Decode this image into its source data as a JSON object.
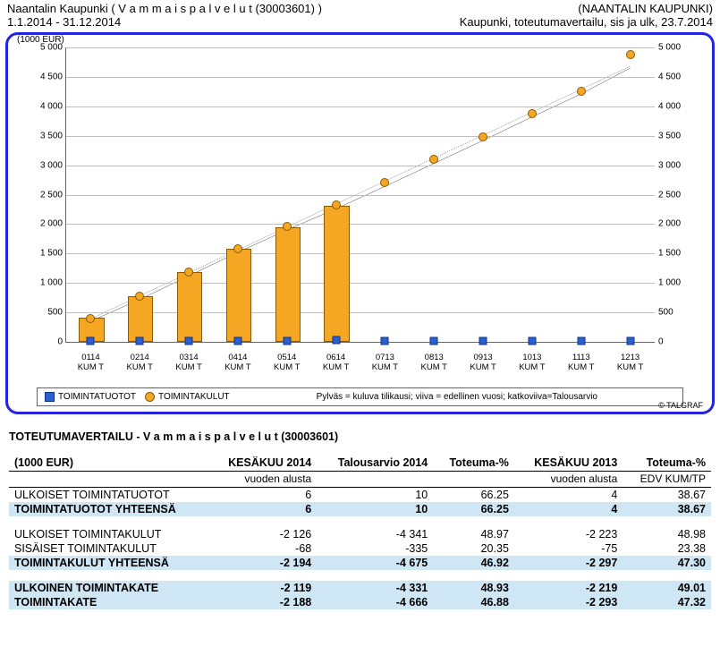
{
  "header": {
    "left1": "Naantalin Kaupunki ( V a m m a i s p a l v e l u t (30003601) )",
    "right1": "(NAANTALIN KAUPUNKI)",
    "left2": "1.1.2014 - 31.12.2014",
    "right2": "Kaupunki, toteutumavertailu, sis ja ulk, 23.7.2014"
  },
  "chart": {
    "axis_title": "(1000 EUR)",
    "ylim": [
      0,
      5000
    ],
    "ytick_step": 500,
    "categories": [
      "0114",
      "0214",
      "0314",
      "0414",
      "0514",
      "0614",
      "0713",
      "0813",
      "0913",
      "1013",
      "1113",
      "1213"
    ],
    "cat_sub": "KUM T",
    "bars": [
      380,
      750,
      1150,
      1550,
      1920,
      2280,
      0,
      0,
      0,
      0,
      0,
      0
    ],
    "bar_color": "#f5a623",
    "bar_border": "#8a5a00",
    "bar_width": 0.48,
    "sq_series": [
      20,
      20,
      20,
      20,
      20,
      25,
      20,
      20,
      20,
      20,
      20,
      20
    ],
    "sq_color": "#2a5fd0",
    "sq_border": "#12338a",
    "ci_series": [
      400,
      770,
      1180,
      1580,
      1960,
      2320,
      2700,
      3100,
      3480,
      3880,
      4260,
      4880
    ],
    "line_solid": [
      350,
      720,
      1120,
      1520,
      1900,
      2260,
      2640,
      3030,
      3420,
      3820,
      4210,
      4650
    ],
    "line_dash": [
      390,
      780,
      1170,
      1560,
      1950,
      2340,
      2730,
      3120,
      3510,
      3900,
      4290,
      4680
    ],
    "plot_border": "#666",
    "grid_color": "#bfbfbf",
    "bg": "#ffffff",
    "legend": {
      "a_label": "TOIMINTATUOTOT",
      "b_label": "TOIMINTAKULUT",
      "note": "Pylväs = kuluva tilikausi; viiva = edellinen vuosi; katkoviiva=Talousarvio"
    },
    "copyright": "© TALGRAF",
    "frame_color": "#2424e0"
  },
  "table": {
    "title": "TOTEUTUMAVERTAILU - V a m m a i s p a l v e l u t (30003601)",
    "unit": "(1000 EUR)",
    "columns": [
      "",
      "KESÄKUU 2014",
      "Talousarvio 2014",
      "Toteuma-%",
      "KESÄKUU 2013",
      "Toteuma-%"
    ],
    "columns_sub": [
      "",
      "vuoden alusta",
      "",
      "",
      "vuoden alusta",
      "EDV KUM/TP"
    ],
    "rows": [
      {
        "t": "plain",
        "c": [
          "ULKOISET TOIMINTATUOTOT",
          "6",
          "10",
          "66.25",
          "4",
          "38.67"
        ]
      },
      {
        "t": "hl",
        "c": [
          "TOIMINTATUOTOT YHTEENSÄ",
          "6",
          "10",
          "66.25",
          "4",
          "38.67"
        ]
      },
      {
        "t": "sp"
      },
      {
        "t": "plain",
        "c": [
          "ULKOISET TOIMINTAKULUT",
          "-2 126",
          "-4 341",
          "48.97",
          "-2 223",
          "48.98"
        ]
      },
      {
        "t": "plain",
        "c": [
          "SISÄISET TOIMINTAKULUT",
          "-68",
          "-335",
          "20.35",
          "-75",
          "23.38"
        ]
      },
      {
        "t": "hl",
        "c": [
          "TOIMINTAKULUT YHTEENSÄ",
          "-2 194",
          "-4 675",
          "46.92",
          "-2 297",
          "47.30"
        ]
      },
      {
        "t": "sp"
      },
      {
        "t": "hl",
        "c": [
          "ULKOINEN TOIMINTAKATE",
          "-2 119",
          "-4 331",
          "48.93",
          "-2 219",
          "49.01"
        ]
      },
      {
        "t": "hl",
        "c": [
          "TOIMINTAKATE",
          "-2 188",
          "-4 666",
          "46.88",
          "-2 293",
          "47.32"
        ]
      }
    ]
  }
}
